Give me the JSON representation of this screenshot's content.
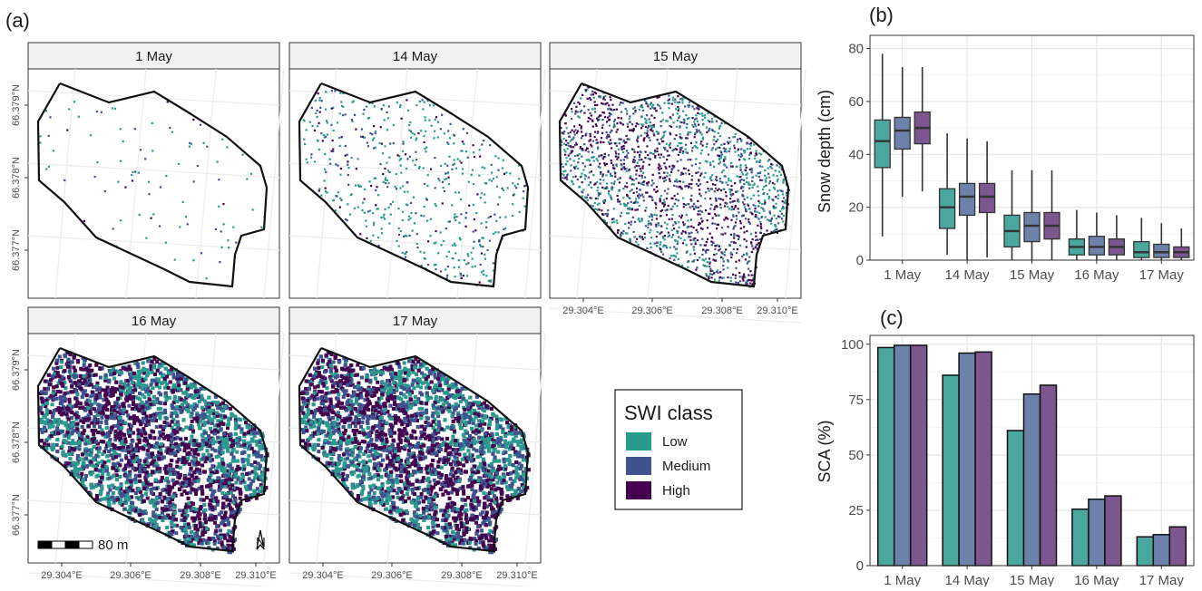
{
  "panel_a": {
    "label": "(a)",
    "dates": [
      "1 May",
      "14 May",
      "15 May",
      "16 May",
      "17 May"
    ],
    "lat_ticks": [
      "66.379°N",
      "66.378°N",
      "66.377°N"
    ],
    "lon_ticks": [
      "29.304°E",
      "29.306°E",
      "29.308°E",
      "29.310°E"
    ],
    "scale_bar": "80 m",
    "north_arrow": "N",
    "snow_fraction": {
      "1 May": 0.01,
      "14 May": 0.1,
      "15 May": 0.35,
      "16 May": 0.75,
      "17 May": 0.85
    }
  },
  "legend": {
    "title": "SWI class",
    "items": [
      {
        "label": "Low",
        "color": "#2a9a8f"
      },
      {
        "label": "Medium",
        "color": "#3e5290"
      },
      {
        "label": "High",
        "color": "#44024f"
      }
    ]
  },
  "chart_data": [
    {
      "panel": "(b)",
      "type": "box",
      "ylabel": "Snow depth (cm)",
      "ylim": [
        0,
        85
      ],
      "yticks": [
        0,
        20,
        40,
        60,
        80
      ],
      "categories": [
        "1 May",
        "14 May",
        "15 May",
        "16 May",
        "17 May"
      ],
      "series": [
        {
          "name": "Low",
          "color": "#49a79d",
          "boxes": [
            {
              "min": 9,
              "q1": 35,
              "median": 45,
              "q3": 53,
              "max": 78
            },
            {
              "min": 2,
              "q1": 12,
              "median": 20,
              "q3": 27,
              "max": 48
            },
            {
              "min": 0,
              "q1": 5,
              "median": 11,
              "q3": 17,
              "max": 34
            },
            {
              "min": 0,
              "q1": 2,
              "median": 5,
              "q3": 8,
              "max": 19
            },
            {
              "min": 0,
              "q1": 1,
              "median": 3,
              "q3": 7,
              "max": 16
            }
          ]
        },
        {
          "name": "Medium",
          "color": "#6c82ab",
          "boxes": [
            {
              "min": 24,
              "q1": 42,
              "median": 49,
              "q3": 54,
              "max": 73
            },
            {
              "min": 0,
              "q1": 17,
              "median": 24,
              "q3": 29,
              "max": 46
            },
            {
              "min": 0,
              "q1": 7,
              "median": 13,
              "q3": 18,
              "max": 34
            },
            {
              "min": 0,
              "q1": 2,
              "median": 5,
              "q3": 9,
              "max": 18
            },
            {
              "min": 0,
              "q1": 1,
              "median": 3,
              "q3": 6,
              "max": 14
            }
          ]
        },
        {
          "name": "High",
          "color": "#7d558f",
          "boxes": [
            {
              "min": 26,
              "q1": 44,
              "median": 50,
              "q3": 56,
              "max": 73
            },
            {
              "min": 1,
              "q1": 18,
              "median": 24,
              "q3": 29,
              "max": 45
            },
            {
              "min": 0,
              "q1": 8,
              "median": 13,
              "q3": 18,
              "max": 34
            },
            {
              "min": 0,
              "q1": 2,
              "median": 5,
              "q3": 8,
              "max": 17
            },
            {
              "min": 0,
              "q1": 1,
              "median": 3,
              "q3": 5,
              "max": 12
            }
          ]
        }
      ]
    },
    {
      "panel": "(c)",
      "type": "bar",
      "ylabel": "SCA (%)",
      "ylim": [
        0,
        104
      ],
      "yticks": [
        0,
        25,
        50,
        75,
        100
      ],
      "categories": [
        "1 May",
        "14 May",
        "15 May",
        "16 May",
        "17 May"
      ],
      "series": [
        {
          "name": "Low",
          "color": "#49a79d",
          "values": [
            98.5,
            86,
            61,
            25.5,
            13
          ]
        },
        {
          "name": "Medium",
          "color": "#6c82ab",
          "values": [
            99.5,
            96,
            77.5,
            30,
            14
          ]
        },
        {
          "name": "High",
          "color": "#7d558f",
          "values": [
            99.5,
            96.5,
            81.5,
            31.5,
            17.5
          ]
        }
      ]
    }
  ]
}
